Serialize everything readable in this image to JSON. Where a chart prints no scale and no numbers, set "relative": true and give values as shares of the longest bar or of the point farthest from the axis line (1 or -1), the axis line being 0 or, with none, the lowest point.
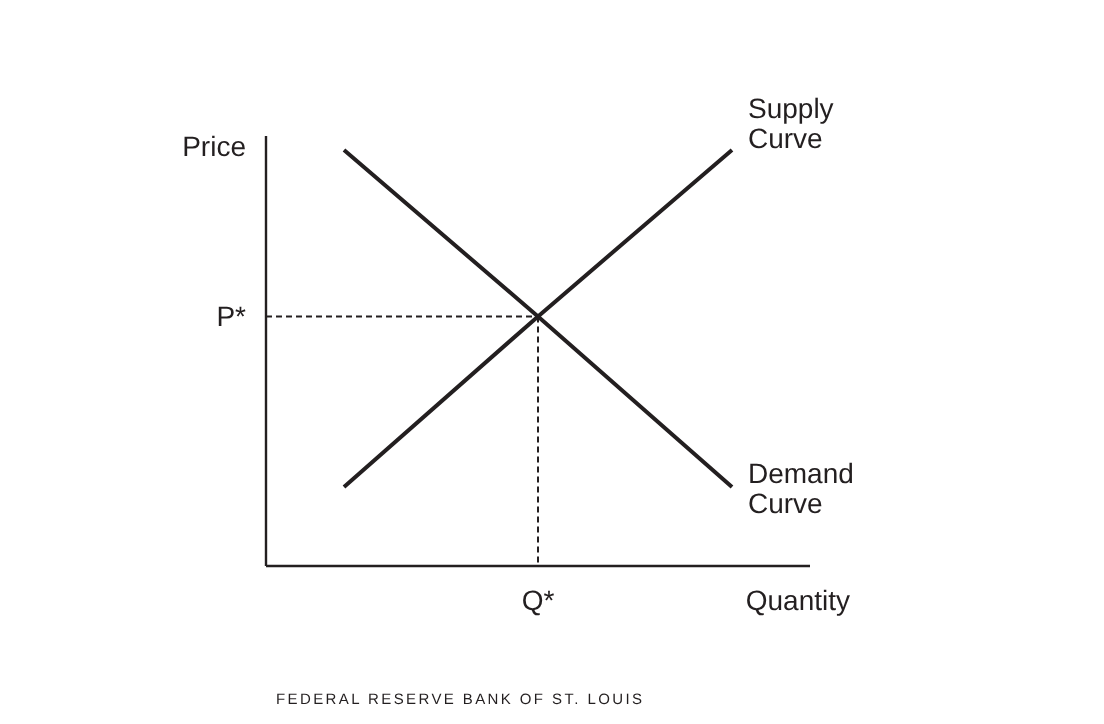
{
  "chart_data": {
    "type": "line",
    "relative": true,
    "xlabel": "Quantity",
    "ylabel": "Price",
    "categories": [
      null,
      null,
      null
    ],
    "series": [
      {
        "name": "Supply Curve",
        "color": "#231f20",
        "values": [
          0.19,
          0.6,
          1
        ]
      },
      {
        "name": "Demand Curve",
        "color": "#231f20",
        "values": [
          1,
          0.6,
          0.19
        ]
      }
    ],
    "ref_lines": [
      {
        "axis": "y",
        "value": 0.6,
        "label": "P*",
        "line_style": "dashed"
      }
    ],
    "annotations": [
      "Q*",
      "FEDERAL RESERVE BANK OF ST. LOUIS"
    ],
    "marker": "none",
    "line_style": "solid"
  }
}
